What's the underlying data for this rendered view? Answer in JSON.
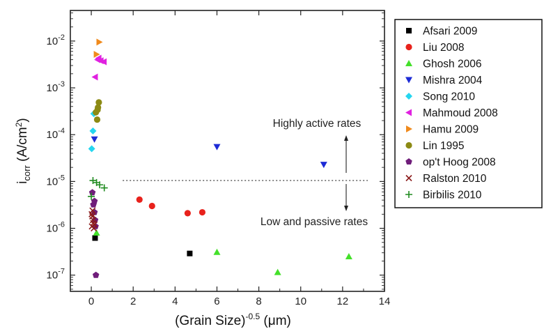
{
  "chart_data": {
    "type": "scatter",
    "title": "",
    "xlabel": "(Grain Size)",
    "xlabel_exponent": "-0.5",
    "xlabel_unit": "(μm)",
    "ylabel_main": "i",
    "ylabel_sub": "corr",
    "ylabel_unit_pre": "(A/cm",
    "ylabel_unit_sup": "2",
    "ylabel_unit_post": ")",
    "xlim": [
      -1,
      14
    ],
    "ylim": [
      4.5e-08,
      0.045
    ],
    "y_scale": "log",
    "x_ticks": [
      "0",
      "2",
      "4",
      "6",
      "8",
      "10",
      "12",
      "14"
    ],
    "y_ticks": [
      {
        "base": "10",
        "exp": "-7"
      },
      {
        "base": "10",
        "exp": "-6"
      },
      {
        "base": "10",
        "exp": "-5"
      },
      {
        "base": "10",
        "exp": "-4"
      },
      {
        "base": "10",
        "exp": "-3"
      },
      {
        "base": "10",
        "exp": "-2"
      }
    ],
    "grid": false,
    "legend_position": "outside-right",
    "threshold": {
      "y": 1.05e-05,
      "x_start": 1.5,
      "x_end": 13.2,
      "style": "dotted"
    },
    "annotations": [
      {
        "text": "Highly active rates",
        "arrow": "up"
      },
      {
        "text": "Low and passive rates",
        "arrow": "down"
      }
    ],
    "series": [
      {
        "name": "Afsari 2009",
        "marker": "square",
        "color": "#000000",
        "points": [
          [
            0.18,
            6.2e-07
          ],
          [
            4.7,
            2.9e-07
          ]
        ]
      },
      {
        "name": "Liu 2008",
        "marker": "circle",
        "color": "#e8221c",
        "points": [
          [
            2.3,
            4.1e-06
          ],
          [
            2.9,
            3e-06
          ],
          [
            4.6,
            2.1e-06
          ],
          [
            5.3,
            2.2e-06
          ]
        ]
      },
      {
        "name": "Ghosh 2006",
        "marker": "triangle-up",
        "color": "#44e02a",
        "points": [
          [
            0.25,
            8e-07
          ],
          [
            6.0,
            3.1e-07
          ],
          [
            8.9,
            1.15e-07
          ],
          [
            12.3,
            2.5e-07
          ]
        ]
      },
      {
        "name": "Mishra 2004",
        "marker": "triangle-down",
        "color": "#1d2bd6",
        "points": [
          [
            0.15,
            8e-05
          ],
          [
            6.0,
            5.5e-05
          ],
          [
            11.1,
            2.3e-05
          ]
        ]
      },
      {
        "name": "Song 2010",
        "marker": "diamond",
        "color": "#25d6ef",
        "points": [
          [
            0.02,
            5e-05
          ],
          [
            0.08,
            0.00012
          ],
          [
            0.12,
            0.00028
          ]
        ]
      },
      {
        "name": "Mahmoud 2008",
        "marker": "triangle-left",
        "color": "#e021e0",
        "points": [
          [
            0.18,
            0.0017
          ],
          [
            0.35,
            0.0043
          ],
          [
            0.45,
            0.0038
          ],
          [
            0.6,
            0.0036
          ],
          [
            0.3,
            0.004
          ]
        ]
      },
      {
        "name": "Hamu 2009",
        "marker": "triangle-right",
        "color": "#f08a1c",
        "points": [
          [
            0.25,
            0.0052
          ],
          [
            0.38,
            0.0095
          ]
        ]
      },
      {
        "name": "Lin 1995",
        "marker": "circle",
        "color": "#8c8a14",
        "points": [
          [
            0.28,
            0.00021
          ],
          [
            0.22,
            0.0003
          ],
          [
            0.3,
            0.00034
          ],
          [
            0.32,
            0.00038
          ],
          [
            0.36,
            0.00049
          ]
        ]
      },
      {
        "name": "op't Hoog 2008",
        "marker": "pentagon",
        "color": "#6f1d7a",
        "points": [
          [
            0.05,
            5.8e-06
          ],
          [
            0.1,
            3.2e-06
          ],
          [
            0.15,
            2.2e-06
          ],
          [
            0.18,
            1.5e-06
          ],
          [
            0.2,
            1.1e-06
          ],
          [
            0.22,
            1e-07
          ],
          [
            0.15,
            3.8e-06
          ]
        ]
      },
      {
        "name": "Ralston 2010",
        "marker": "x",
        "color": "#8b1a1a",
        "points": [
          [
            0.02,
            2e-06
          ],
          [
            0.05,
            1.8e-06
          ],
          [
            0.08,
            1.5e-06
          ],
          [
            0.1,
            1.3e-06
          ],
          [
            0.03,
            1.1e-06
          ],
          [
            0.12,
            1e-06
          ],
          [
            0.06,
            2.4e-06
          ],
          [
            0.15,
            1.2e-06
          ]
        ]
      },
      {
        "name": "Birbilis 2010",
        "marker": "plus",
        "color": "#1f8a1f",
        "points": [
          [
            0.08,
            1.05e-05
          ],
          [
            0.25,
            9.5e-06
          ],
          [
            0.4,
            8.5e-06
          ],
          [
            0.62,
            7.3e-06
          ],
          [
            0.0,
            4.8e-06
          ]
        ]
      }
    ]
  }
}
